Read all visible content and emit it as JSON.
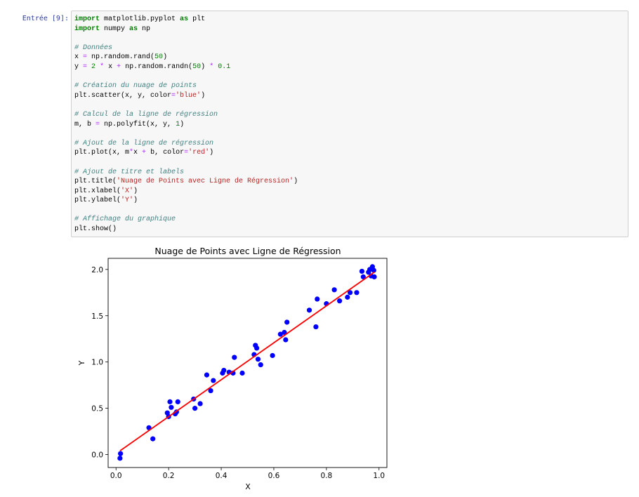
{
  "cell": {
    "prompt": "Entrée [9]:",
    "code_lines": [
      [
        [
          "kw",
          "import"
        ],
        [
          "t",
          " matplotlib.pyplot "
        ],
        [
          "kw",
          "as"
        ],
        [
          "t",
          " plt"
        ]
      ],
      [
        [
          "kw",
          "import"
        ],
        [
          "t",
          " numpy "
        ],
        [
          "kw",
          "as"
        ],
        [
          "t",
          " np"
        ]
      ],
      [],
      [
        [
          "cm",
          "# Données"
        ]
      ],
      [
        [
          "t",
          "x "
        ],
        [
          "op",
          "="
        ],
        [
          "t",
          " np.random.rand("
        ],
        [
          "nu",
          "50"
        ],
        [
          "t",
          ")"
        ]
      ],
      [
        [
          "t",
          "y "
        ],
        [
          "op",
          "="
        ],
        [
          "t",
          " "
        ],
        [
          "nu",
          "2"
        ],
        [
          "t",
          " "
        ],
        [
          "op",
          "*"
        ],
        [
          "t",
          " x "
        ],
        [
          "op",
          "+"
        ],
        [
          "t",
          " np.random.randn("
        ],
        [
          "nu",
          "50"
        ],
        [
          "t",
          ") "
        ],
        [
          "op",
          "*"
        ],
        [
          "t",
          " "
        ],
        [
          "nu",
          "0.1"
        ]
      ],
      [],
      [
        [
          "cm",
          "# Création du nuage de points"
        ]
      ],
      [
        [
          "t",
          "plt.scatter(x, y, color"
        ],
        [
          "op",
          "="
        ],
        [
          "st",
          "'blue'"
        ],
        [
          "t",
          ")"
        ]
      ],
      [],
      [
        [
          "cm",
          "# Calcul de la ligne de régression"
        ]
      ],
      [
        [
          "t",
          "m, b "
        ],
        [
          "op",
          "="
        ],
        [
          "t",
          " np.polyfit(x, y, "
        ],
        [
          "nu",
          "1"
        ],
        [
          "t",
          ")"
        ]
      ],
      [],
      [
        [
          "cm",
          "# Ajout de la ligne de régression"
        ]
      ],
      [
        [
          "t",
          "plt.plot(x, m"
        ],
        [
          "op",
          "*"
        ],
        [
          "t",
          "x "
        ],
        [
          "op",
          "+"
        ],
        [
          "t",
          " b, color"
        ],
        [
          "op",
          "="
        ],
        [
          "st",
          "'red'"
        ],
        [
          "t",
          ")"
        ]
      ],
      [],
      [
        [
          "cm",
          "# Ajout de titre et labels"
        ]
      ],
      [
        [
          "t",
          "plt.title("
        ],
        [
          "st",
          "'Nuage de Points avec Ligne de Régression'"
        ],
        [
          "t",
          ")"
        ]
      ],
      [
        [
          "t",
          "plt.xlabel("
        ],
        [
          "st",
          "'X'"
        ],
        [
          "t",
          ")"
        ]
      ],
      [
        [
          "t",
          "plt.ylabel("
        ],
        [
          "st",
          "'Y'"
        ],
        [
          "t",
          ")"
        ]
      ],
      [],
      [
        [
          "cm",
          "# Affichage du graphique"
        ]
      ],
      [
        [
          "t",
          "plt.show()"
        ]
      ]
    ]
  },
  "chart_data": {
    "type": "scatter",
    "title": "Nuage de Points avec Ligne de Régression",
    "xlabel": "X",
    "ylabel": "Y",
    "xlim": [
      -0.03,
      1.03
    ],
    "ylim": [
      -0.14,
      2.12
    ],
    "xticks": [
      "0.0",
      "0.2",
      "0.4",
      "0.6",
      "0.8",
      "1.0"
    ],
    "xtick_values": [
      0,
      0.2,
      0.4,
      0.6,
      0.8,
      1.0
    ],
    "yticks": [
      "0.0",
      "0.5",
      "1.0",
      "1.5",
      "2.0"
    ],
    "ytick_values": [
      0,
      0.5,
      1.0,
      1.5,
      2.0
    ],
    "grid": false,
    "scatter_color": "#0000ff",
    "line_color": "#ff0000",
    "points": [
      [
        0.015,
        -0.04
      ],
      [
        0.017,
        0.01
      ],
      [
        0.125,
        0.29
      ],
      [
        0.14,
        0.17
      ],
      [
        0.195,
        0.45
      ],
      [
        0.2,
        0.41
      ],
      [
        0.205,
        0.57
      ],
      [
        0.21,
        0.51
      ],
      [
        0.225,
        0.44
      ],
      [
        0.23,
        0.46
      ],
      [
        0.235,
        0.57
      ],
      [
        0.295,
        0.6
      ],
      [
        0.3,
        0.5
      ],
      [
        0.32,
        0.55
      ],
      [
        0.345,
        0.86
      ],
      [
        0.36,
        0.69
      ],
      [
        0.37,
        0.8
      ],
      [
        0.405,
        0.88
      ],
      [
        0.41,
        0.91
      ],
      [
        0.43,
        0.89
      ],
      [
        0.445,
        0.88
      ],
      [
        0.45,
        1.05
      ],
      [
        0.48,
        0.88
      ],
      [
        0.525,
        1.08
      ],
      [
        0.53,
        1.18
      ],
      [
        0.535,
        1.15
      ],
      [
        0.54,
        1.03
      ],
      [
        0.55,
        0.97
      ],
      [
        0.595,
        1.07
      ],
      [
        0.625,
        1.3
      ],
      [
        0.64,
        1.32
      ],
      [
        0.645,
        1.24
      ],
      [
        0.65,
        1.43
      ],
      [
        0.735,
        1.56
      ],
      [
        0.76,
        1.38
      ],
      [
        0.765,
        1.68
      ],
      [
        0.8,
        1.63
      ],
      [
        0.83,
        1.78
      ],
      [
        0.85,
        1.66
      ],
      [
        0.88,
        1.7
      ],
      [
        0.89,
        1.75
      ],
      [
        0.915,
        1.75
      ],
      [
        0.935,
        1.98
      ],
      [
        0.94,
        1.92
      ],
      [
        0.96,
        1.97
      ],
      [
        0.965,
        2.0
      ],
      [
        0.97,
        1.93
      ],
      [
        0.975,
        2.03
      ],
      [
        0.98,
        1.99
      ],
      [
        0.982,
        1.92
      ]
    ],
    "regression_line": {
      "x": [
        0.015,
        0.982
      ],
      "y": [
        0.04,
        1.97
      ]
    }
  }
}
